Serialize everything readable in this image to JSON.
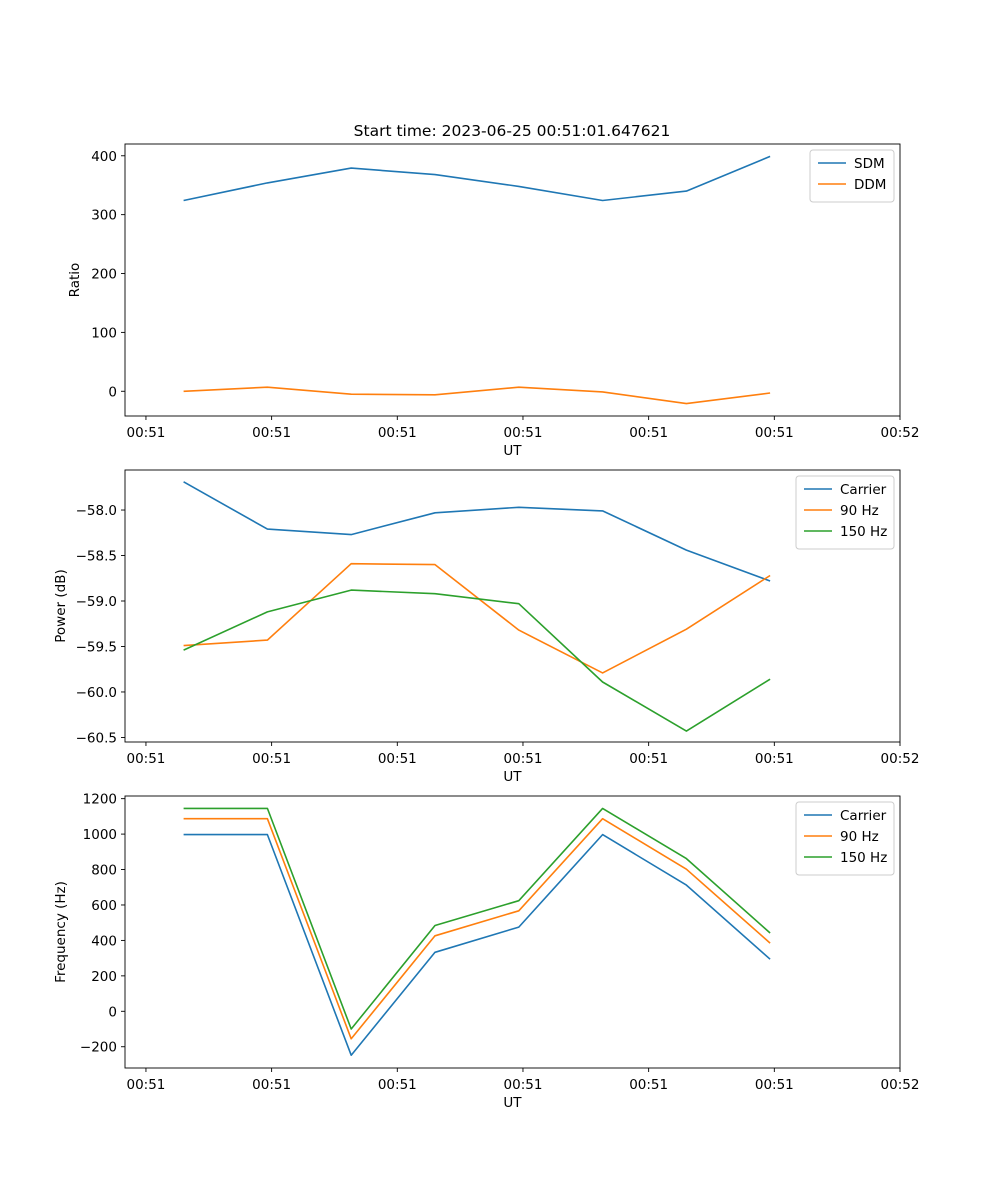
{
  "figure": {
    "title": "Start time: 2023-06-25 00:51:01.647621"
  },
  "chart_data": [
    {
      "type": "line",
      "title": "Start time: 2023-06-25 00:51:01.647621",
      "xlabel": "UT",
      "ylabel": "Ratio",
      "x": [
        1,
        2,
        3,
        4,
        5,
        6,
        7,
        8
      ],
      "xlim": [
        0.3,
        9.55
      ],
      "xticks": [
        0.55,
        2.05,
        3.55,
        5.05,
        6.55,
        8.05,
        9.55
      ],
      "xtick_labels": [
        "00:51",
        "00:51",
        "00:51",
        "00:51",
        "00:51",
        "00:51",
        "00:52"
      ],
      "ylim": [
        -42,
        420
      ],
      "yticks": [
        0,
        100,
        200,
        300,
        400
      ],
      "ytick_labels": [
        "0",
        "100",
        "200",
        "300",
        "400"
      ],
      "legend": "top-right",
      "series": [
        {
          "name": "SDM",
          "color": "#1f77b4",
          "values": [
            324,
            354,
            379,
            368,
            348,
            324,
            340,
            399
          ]
        },
        {
          "name": "DDM",
          "color": "#ff7f0e",
          "values": [
            0,
            7,
            -5,
            -6,
            7,
            -1,
            -21,
            -3
          ]
        }
      ]
    },
    {
      "type": "line",
      "xlabel": "UT",
      "ylabel": "Power (dB)",
      "x": [
        1,
        2,
        3,
        4,
        5,
        6,
        7,
        8
      ],
      "xlim": [
        0.3,
        9.55
      ],
      "xticks": [
        0.55,
        2.05,
        3.55,
        5.05,
        6.55,
        8.05,
        9.55
      ],
      "xtick_labels": [
        "00:51",
        "00:51",
        "00:51",
        "00:51",
        "00:51",
        "00:51",
        "00:52"
      ],
      "ylim": [
        -60.55,
        -57.56
      ],
      "yticks": [
        -60.5,
        -60.0,
        -59.5,
        -59.0,
        -58.5,
        -58.0
      ],
      "ytick_labels": [
        "−60.5",
        "−60.0",
        "−59.5",
        "−59.0",
        "−58.5",
        "−58.0"
      ],
      "legend": "top-right",
      "series": [
        {
          "name": "Carrier",
          "color": "#1f77b4",
          "values": [
            -57.69,
            -58.21,
            -58.27,
            -58.03,
            -57.97,
            -58.01,
            -58.44,
            -58.78
          ]
        },
        {
          "name": "90 Hz",
          "color": "#ff7f0e",
          "values": [
            -59.49,
            -59.43,
            -58.59,
            -58.6,
            -59.32,
            -59.79,
            -59.31,
            -58.72
          ]
        },
        {
          "name": "150 Hz",
          "color": "#2ca02c",
          "values": [
            -59.54,
            -59.12,
            -58.88,
            -58.92,
            -59.03,
            -59.89,
            -60.43,
            -59.86
          ]
        }
      ]
    },
    {
      "type": "line",
      "xlabel": "UT",
      "ylabel": "Frequency (Hz)",
      "x": [
        1,
        2,
        3,
        4,
        5,
        6,
        7,
        8
      ],
      "xlim": [
        0.3,
        9.55
      ],
      "xticks": [
        0.55,
        2.05,
        3.55,
        5.05,
        6.55,
        8.05,
        9.55
      ],
      "xtick_labels": [
        "00:51",
        "00:51",
        "00:51",
        "00:51",
        "00:51",
        "00:51",
        "00:52"
      ],
      "ylim": [
        -320,
        1215
      ],
      "yticks": [
        -200,
        0,
        200,
        400,
        600,
        800,
        1000,
        1200
      ],
      "ytick_labels": [
        "−200",
        "0",
        "200",
        "400",
        "600",
        "800",
        "1000",
        "1200"
      ],
      "legend": "top-right",
      "series": [
        {
          "name": "Carrier",
          "color": "#1f77b4",
          "values": [
            997,
            997,
            -248,
            333,
            475,
            997,
            712,
            294
          ]
        },
        {
          "name": "90 Hz",
          "color": "#ff7f0e",
          "values": [
            1087,
            1087,
            -155,
            426,
            567,
            1087,
            802,
            385
          ]
        },
        {
          "name": "150 Hz",
          "color": "#2ca02c",
          "values": [
            1145,
            1145,
            -100,
            484,
            624,
            1145,
            862,
            442
          ]
        }
      ]
    }
  ]
}
